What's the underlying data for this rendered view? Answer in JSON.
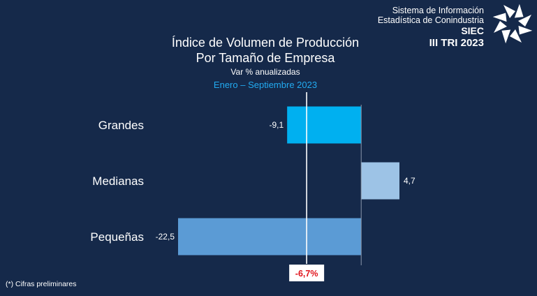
{
  "title_lines": [
    "Índice de Volumen de Producción",
    "Por Tamaño de Empresa"
  ],
  "subtitle": "Var % anualizadas",
  "period": "Enero – Septiembre 2023",
  "brand": {
    "line1": "Sistema de Información",
    "line2": "Estadística de Conindustria",
    "line3": "SIEC",
    "line4": "III TRI 2023",
    "logo_icon": "spiral-star-logo-icon"
  },
  "footnote": "(*) Cifras preliminares",
  "colors": {
    "background": "#15294a",
    "grandes": "#00b0f0",
    "medianas": "#9dc3e6",
    "pequenas": "#5b9bd5",
    "average_text": "#e0141c"
  },
  "chart_data": {
    "type": "bar",
    "orientation": "horizontal",
    "categories": [
      "Grandes",
      "Medianas",
      "Pequeñas"
    ],
    "values": [
      -9.1,
      4.7,
      -22.5
    ],
    "value_labels": [
      "-9,1",
      "4,7",
      "-22,5"
    ],
    "bar_colors": [
      "#00b0f0",
      "#9dc3e6",
      "#5b9bd5"
    ],
    "xlim": [
      -22.5,
      4.7
    ],
    "reference_line": {
      "value": -6.7,
      "label": "-6,7%"
    },
    "grid": false,
    "legend": "none"
  }
}
